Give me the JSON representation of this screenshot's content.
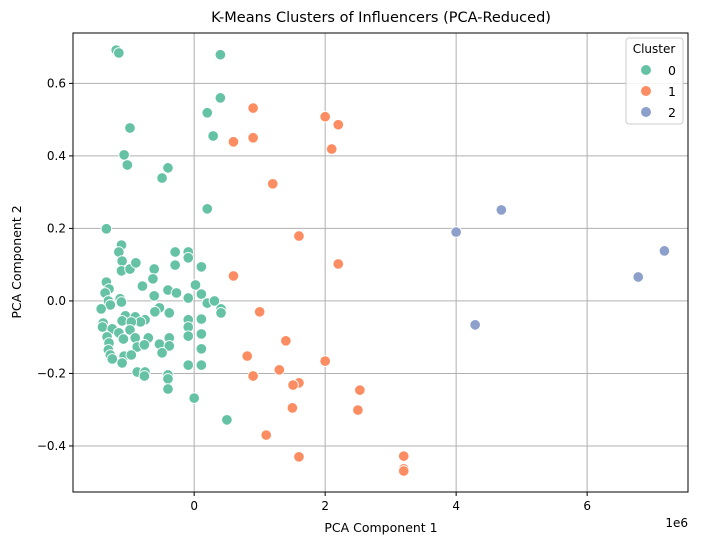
{
  "chart_data": {
    "type": "scatter",
    "title": "K-Means Clusters of Influencers (PCA-Reduced)",
    "xlabel": "PCA Component 1",
    "ylabel": "PCA Component 2",
    "x_offset_label": "1e6",
    "xlim": [
      -1.85,
      7.54
    ],
    "ylim": [
      -0.527,
      0.739
    ],
    "x_ticks": [
      0,
      2,
      4,
      6
    ],
    "x_tick_labels": [
      "0",
      "2",
      "4",
      "6"
    ],
    "y_ticks": [
      -0.4,
      -0.2,
      0.0,
      0.2,
      0.4,
      0.6
    ],
    "y_tick_labels": [
      "−0.4",
      "−0.2",
      "0.0",
      "0.2",
      "0.4",
      "0.6"
    ],
    "grid": true,
    "legend": {
      "title": "Cluster",
      "placement": "top-right"
    },
    "series": [
      {
        "name": "0",
        "color": "#66c2a5",
        "points": [
          [
            -1.19,
            0.692
          ],
          [
            -1.15,
            0.684
          ],
          [
            0.4,
            0.679
          ],
          [
            0.4,
            0.56
          ],
          [
            0.2,
            0.519
          ],
          [
            0.29,
            0.455
          ],
          [
            -0.98,
            0.477
          ],
          [
            -1.07,
            0.403
          ],
          [
            -1.02,
            0.375
          ],
          [
            -0.4,
            0.367
          ],
          [
            -0.49,
            0.339
          ],
          [
            0.2,
            0.254
          ],
          [
            -1.34,
            0.199
          ],
          [
            -1.11,
            0.154
          ],
          [
            -1.15,
            0.135
          ],
          [
            -1.1,
            0.11
          ],
          [
            -1.11,
            0.083
          ],
          [
            -0.98,
            0.088
          ],
          [
            -0.89,
            0.105
          ],
          [
            -0.61,
            0.088
          ],
          [
            -0.63,
            0.061
          ],
          [
            -0.79,
            0.041
          ],
          [
            -0.61,
            0.014
          ],
          [
            -0.29,
            0.135
          ],
          [
            -0.29,
            0.099
          ],
          [
            -0.09,
            0.135
          ],
          [
            -0.09,
            0.119
          ],
          [
            0.11,
            0.094
          ],
          [
            0.02,
            0.044
          ],
          [
            0.11,
            0.019
          ],
          [
            -0.09,
            0.008
          ],
          [
            -0.4,
            0.03
          ],
          [
            -0.27,
            0.022
          ],
          [
            0.2,
            -0.006
          ],
          [
            0.31,
            0
          ],
          [
            0.41,
            -0.022
          ],
          [
            0.41,
            -0.033
          ],
          [
            -1.34,
            0.052
          ],
          [
            -1.3,
            0.033
          ],
          [
            -1.36,
            0.022
          ],
          [
            -1.31,
            0
          ],
          [
            -1.28,
            -0.011
          ],
          [
            -1.42,
            -0.022
          ],
          [
            -1.13,
            0.006
          ],
          [
            -1.11,
            -0.003
          ],
          [
            -0.53,
            -0.019
          ],
          [
            -0.6,
            -0.03
          ],
          [
            -0.38,
            -0.033
          ],
          [
            -1.05,
            -0.041
          ],
          [
            -0.9,
            -0.044
          ],
          [
            -0.75,
            -0.052
          ],
          [
            -0.82,
            -0.058
          ],
          [
            -1.1,
            -0.055
          ],
          [
            -0.96,
            -0.058
          ],
          [
            -1.39,
            -0.061
          ],
          [
            -1.4,
            -0.072
          ],
          [
            -1.25,
            -0.077
          ],
          [
            -1.15,
            -0.088
          ],
          [
            -0.98,
            -0.08
          ],
          [
            -0.09,
            -0.052
          ],
          [
            -0.09,
            -0.072
          ],
          [
            0.11,
            -0.05
          ],
          [
            0.11,
            -0.091
          ],
          [
            -0.09,
            -0.097
          ],
          [
            -1.33,
            -0.099
          ],
          [
            -1.3,
            -0.116
          ],
          [
            -1.08,
            -0.105
          ],
          [
            -0.9,
            -0.102
          ],
          [
            -0.7,
            -0.102
          ],
          [
            -0.87,
            -0.127
          ],
          [
            -0.76,
            -0.121
          ],
          [
            -0.53,
            -0.119
          ],
          [
            -0.38,
            -0.102
          ],
          [
            -0.38,
            -0.124
          ],
          [
            -0.49,
            -0.143
          ],
          [
            0.11,
            -0.132
          ],
          [
            -1.31,
            -0.135
          ],
          [
            -1.28,
            -0.149
          ],
          [
            -1.25,
            -0.16
          ],
          [
            -1.07,
            -0.152
          ],
          [
            -0.96,
            -0.149
          ],
          [
            -1.1,
            -0.171
          ],
          [
            -0.09,
            -0.177
          ],
          [
            0.11,
            -0.177
          ],
          [
            -0.87,
            -0.196
          ],
          [
            -0.75,
            -0.196
          ],
          [
            -0.76,
            -0.207
          ],
          [
            -0.4,
            -0.204
          ],
          [
            -0.4,
            -0.215
          ],
          [
            -0.4,
            -0.243
          ],
          [
            0,
            -0.268
          ],
          [
            0.5,
            -0.328
          ]
        ]
      },
      {
        "name": "1",
        "color": "#fc8d62",
        "points": [
          [
            0.9,
            0.532
          ],
          [
            2.0,
            0.508
          ],
          [
            2.2,
            0.486
          ],
          [
            0.6,
            0.439
          ],
          [
            0.9,
            0.45
          ],
          [
            2.1,
            0.419
          ],
          [
            1.2,
            0.323
          ],
          [
            1.6,
            0.179
          ],
          [
            2.2,
            0.102
          ],
          [
            0.6,
            0.069
          ],
          [
            1.0,
            -0.03
          ],
          [
            1.4,
            -0.11
          ],
          [
            0.81,
            -0.152
          ],
          [
            2.0,
            -0.166
          ],
          [
            1.3,
            -0.19
          ],
          [
            1.6,
            -0.226
          ],
          [
            1.51,
            -0.232
          ],
          [
            0.9,
            -0.207
          ],
          [
            2.53,
            -0.246
          ],
          [
            1.5,
            -0.295
          ],
          [
            2.5,
            -0.301
          ],
          [
            1.1,
            -0.37
          ],
          [
            3.2,
            -0.428
          ],
          [
            3.2,
            -0.463
          ],
          [
            3.2,
            -0.469
          ],
          [
            1.6,
            -0.43
          ]
        ]
      },
      {
        "name": "2",
        "color": "#8da0cb",
        "points": [
          [
            4.0,
            0.19
          ],
          [
            4.69,
            0.251
          ],
          [
            4.29,
            -0.066
          ],
          [
            6.78,
            0.066
          ],
          [
            7.18,
            0.138
          ]
        ]
      }
    ]
  }
}
